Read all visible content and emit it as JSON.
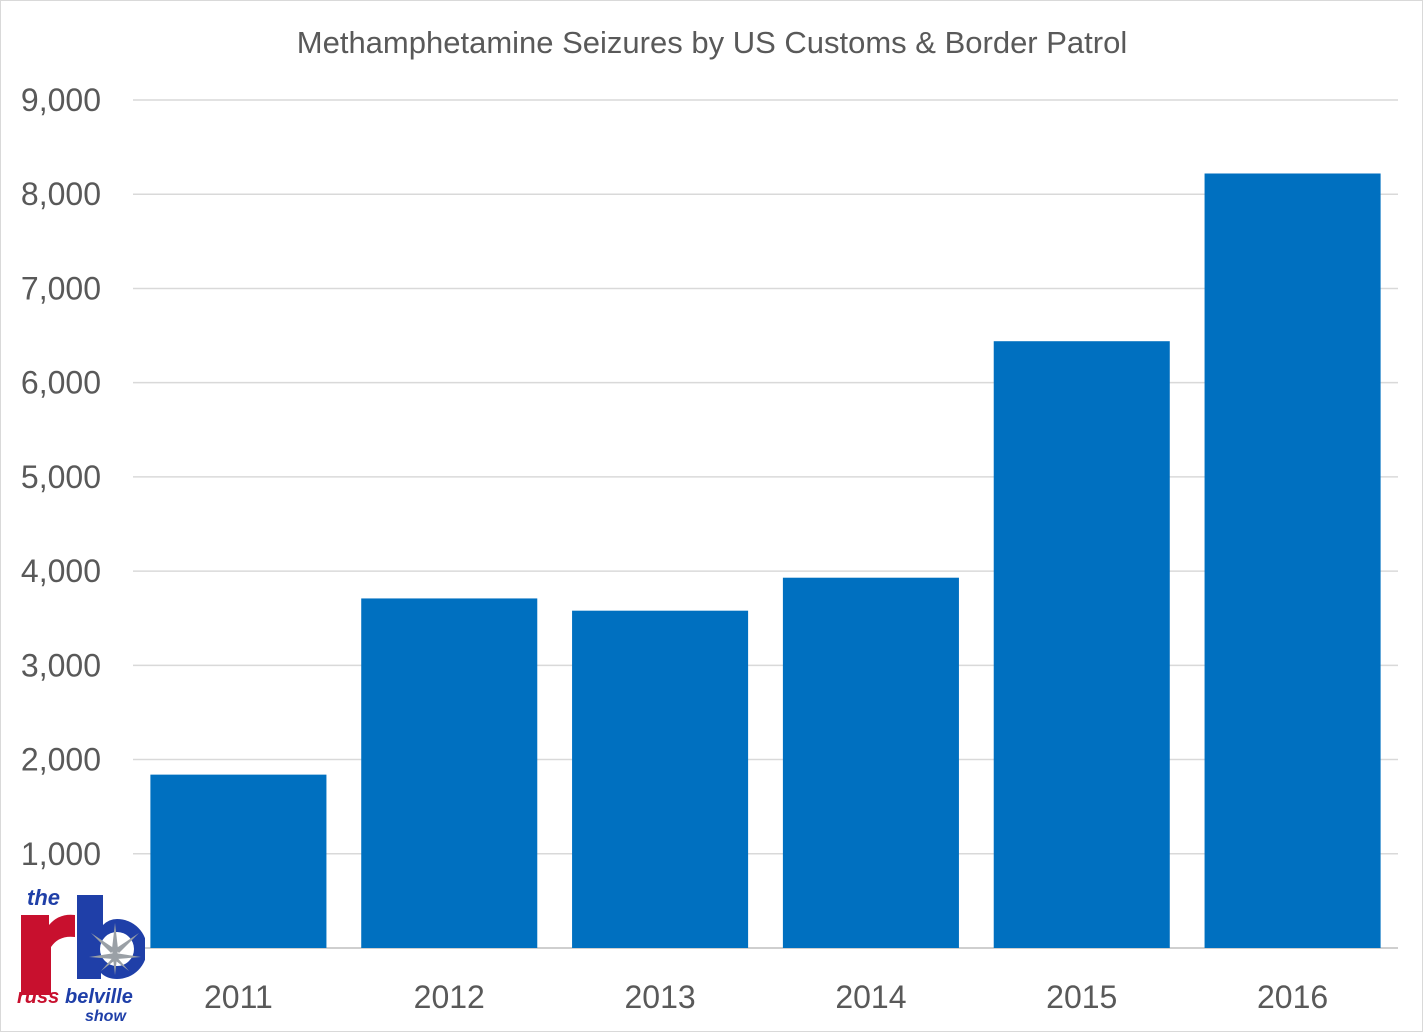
{
  "chart_data": {
    "type": "bar",
    "title": "Methamphetamine Seizures by US Customs & Border Patrol",
    "xlabel": "",
    "ylabel": "",
    "categories": [
      "2011",
      "2012",
      "2013",
      "2014",
      "2015",
      "2016"
    ],
    "values": [
      1840,
      3710,
      3580,
      3930,
      6440,
      8220
    ],
    "ylim": [
      0,
      9000
    ],
    "yticks": [
      0,
      1000,
      2000,
      3000,
      4000,
      5000,
      6000,
      7000,
      8000,
      9000
    ],
    "ytick_labels": [
      "",
      "1,000",
      "2,000",
      "3,000",
      "4,000",
      "5,000",
      "6,000",
      "7,000",
      "8,000",
      "9,000"
    ],
    "grid": true,
    "legend": "none",
    "bar_color": "#0070C0"
  },
  "watermark": {
    "line1": "the",
    "line2": "russ",
    "line3": "belville",
    "line4": "show",
    "colors": {
      "red": "#c8102e",
      "blue": "#1f3fa8",
      "leaf": "#9aa0a6"
    }
  }
}
